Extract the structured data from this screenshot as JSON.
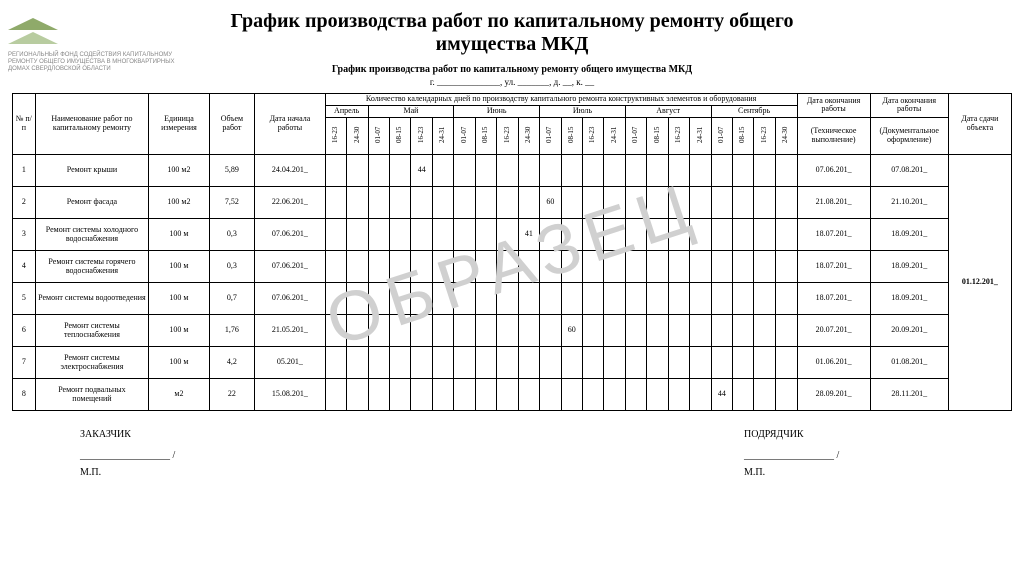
{
  "logo": {
    "line1": "РЕГИОНАЛЬНЫЙ ФОНД СОДЕЙСТВИЯ КАПИТАЛЬНОМУ",
    "line2": "РЕМОНТУ ОБЩЕГО ИМУЩЕСТВА В МНОГОКВАРТИРНЫХ",
    "line3": "ДОМАХ СВЕРДЛОВСКОЙ ОБЛАСТИ"
  },
  "title": "График производства работ по капитальному ремонту общего имущества МКД",
  "subtitle": "График производства работ по капитальному ремонту общего имущества МКД",
  "address_line": "г. ______________, ул. _______, д. __, к. __",
  "watermark": "ОБРАЗЕЦ",
  "headers": {
    "num": "№ п/п",
    "name": "Наименование работ по капитальному ремонту",
    "unit": "Единица измерения",
    "volume": "Объем работ",
    "start": "Дата начала работы",
    "days_title": "Количество календарных дней по производству капитального ремонта конструктивных элементов и оборудования",
    "end1": "Дата окончания работы",
    "end1_sub": "(Техническое выполнение)",
    "end2": "Дата окончания работы",
    "end2_sub": "(Документальное оформление)",
    "delivery": "Дата сдачи объекта"
  },
  "months": [
    "Апрель",
    "Май",
    "Июнь",
    "Июль",
    "Август",
    "Сентябрь"
  ],
  "periods": [
    "01-07",
    "08-15",
    "16-23",
    "24-30",
    "24-31"
  ],
  "month_periods": {
    "april": [
      "16-23",
      "24-30"
    ],
    "may": [
      "01-07",
      "08-15",
      "16-23",
      "24-31"
    ],
    "june": [
      "01-07",
      "08-15",
      "16-23",
      "24-30"
    ],
    "july": [
      "01-07",
      "08-15",
      "16-23",
      "24-31"
    ],
    "august": [
      "01-07",
      "08-15",
      "16-23",
      "24-31"
    ],
    "september": [
      "01-07",
      "08-15",
      "16-23",
      "24-30"
    ]
  },
  "rows": [
    {
      "n": "1",
      "name": "Ремонт крыши",
      "unit": "100 м2",
      "vol": "5,89",
      "start": "24.04.201_",
      "cells": {
        "4": "44"
      },
      "end1": "07.06.201_",
      "end2": "07.08.201_"
    },
    {
      "n": "2",
      "name": "Ремонт фасада",
      "unit": "100 м2",
      "vol": "7,52",
      "start": "22.06.201_",
      "cells": {
        "10": "60"
      },
      "end1": "21.08.201_",
      "end2": "21.10.201_"
    },
    {
      "n": "3",
      "name": "Ремонт системы холодного водоснабжения",
      "unit": "100 м",
      "vol": "0,3",
      "start": "07.06.201_",
      "cells": {
        "9": "41"
      },
      "end1": "18.07.201_",
      "end2": "18.09.201_"
    },
    {
      "n": "4",
      "name": "Ремонт системы горячего водоснабжения",
      "unit": "100 м",
      "vol": "0,3",
      "start": "07.06.201_",
      "cells": {},
      "end1": "18.07.201_",
      "end2": "18.09.201_"
    },
    {
      "n": "5",
      "name": "Ремонт системы водоотведения",
      "unit": "100 м",
      "vol": "0,7",
      "start": "07.06.201_",
      "cells": {},
      "end1": "18.07.201_",
      "end2": "18.09.201_"
    },
    {
      "n": "6",
      "name": "Ремонт системы теплоснабжения",
      "unit": "100 м",
      "vol": "1,76",
      "start": "21.05.201_",
      "cells": {
        "11": "60"
      },
      "end1": "20.07.201_",
      "end2": "20.09.201_"
    },
    {
      "n": "7",
      "name": "Ремонт системы электроснабжения",
      "unit": "100 м",
      "vol": "4,2",
      "start": "05.201_",
      "cells": {},
      "end1": "01.06.201_",
      "end2": "01.08.201_"
    },
    {
      "n": "8",
      "name": "Ремонт подвальных помещений",
      "unit": "м2",
      "vol": "22",
      "start": "15.08.201_",
      "cells": {
        "18": "44"
      },
      "end1": "28.09.201_",
      "end2": "28.11.201_"
    }
  ],
  "delivery_date": "01.12.201_",
  "sign": {
    "customer": "ЗАКАЗЧИК",
    "contractor": "ПОДРЯДЧИК",
    "line": "__________________ /",
    "mp": "М.П."
  },
  "style": {
    "font_body": 9,
    "font_title": 20,
    "font_table": 8,
    "border_color": "#000000",
    "watermark_color": "#d0d0d0",
    "logo_color_dark": "#8faa6a",
    "logo_color_light": "#b8cca0"
  }
}
